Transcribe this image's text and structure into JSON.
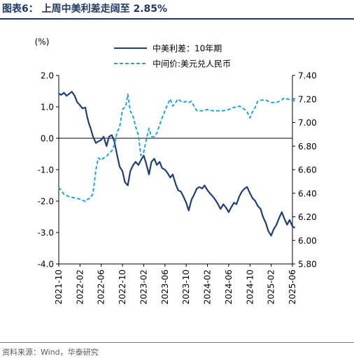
{
  "figure": {
    "title": "图表6：  上周中美利差走阔至 2.85%",
    "source": "资料来源：Wind，华泰研究"
  },
  "colors": {
    "title": "#1f3864",
    "spread_line": "#1f3f7a",
    "fx_line": "#1fa5e0"
  },
  "chart_data": {
    "type": "line",
    "left_axis": {
      "unit_label": "(%)",
      "range": [
        -4.0,
        2.0
      ],
      "ticks": [
        2.0,
        1.0,
        0.0,
        -1.0,
        -2.0,
        -3.0,
        -4.0
      ],
      "tick_labels": [
        "2.0",
        "1.0",
        "0.0",
        "-1.0",
        "-2.0",
        "-3.0",
        "-4.0"
      ]
    },
    "right_axis": {
      "range": [
        5.8,
        7.4
      ],
      "ticks": [
        7.4,
        7.2,
        7.0,
        6.8,
        6.6,
        6.4,
        6.2,
        6.0,
        5.8
      ],
      "tick_labels": [
        "7.40",
        "7.20",
        "7.00",
        "6.80",
        "6.60",
        "6.40",
        "6.20",
        "6.00",
        "5.80"
      ]
    },
    "x_axis": {
      "range": [
        "2021-10",
        "2025-06"
      ],
      "tick_labels": [
        "2021-10",
        "2022-02",
        "2022-06",
        "2022-10",
        "2023-02",
        "2023-06",
        "2023-10",
        "2024-02",
        "2024-06",
        "2024-10",
        "2025-02",
        "2025-06"
      ]
    },
    "legend": {
      "placement": "top",
      "entries": [
        "中美利差：10年期",
        "中间价:美元兑人民币"
      ]
    },
    "series": [
      {
        "name": "中美利差：10年期",
        "axis": "left",
        "style": "solid",
        "points": [
          [
            "2021-10-01",
            1.42
          ],
          [
            "2021-10-15",
            1.38
          ],
          [
            "2021-11-01",
            1.45
          ],
          [
            "2021-11-15",
            1.35
          ],
          [
            "2021-12-01",
            1.42
          ],
          [
            "2021-12-15",
            1.48
          ],
          [
            "2022-01-01",
            1.35
          ],
          [
            "2022-01-15",
            1.15
          ],
          [
            "2022-02-01",
            1.05
          ],
          [
            "2022-02-15",
            0.95
          ],
          [
            "2022-03-01",
            0.98
          ],
          [
            "2022-03-10",
            0.72
          ],
          [
            "2022-03-20",
            0.5
          ],
          [
            "2022-04-01",
            0.32
          ],
          [
            "2022-04-15",
            0.05
          ],
          [
            "2022-05-01",
            -0.15
          ],
          [
            "2022-05-15",
            -0.1
          ],
          [
            "2022-06-01",
            -0.05
          ],
          [
            "2022-06-15",
            0.05
          ],
          [
            "2022-07-01",
            -0.25
          ],
          [
            "2022-07-15",
            0.05
          ],
          [
            "2022-08-01",
            0.1
          ],
          [
            "2022-08-15",
            -0.1
          ],
          [
            "2022-09-01",
            -0.55
          ],
          [
            "2022-09-15",
            -0.9
          ],
          [
            "2022-10-01",
            -1.05
          ],
          [
            "2022-10-15",
            -1.4
          ],
          [
            "2022-11-01",
            -1.5
          ],
          [
            "2022-11-15",
            -1.05
          ],
          [
            "2022-12-01",
            -0.85
          ],
          [
            "2022-12-15",
            -0.75
          ],
          [
            "2023-01-01",
            -0.85
          ],
          [
            "2023-01-15",
            -0.7
          ],
          [
            "2023-02-01",
            -0.55
          ],
          [
            "2023-02-15",
            -0.8
          ],
          [
            "2023-03-01",
            -1.15
          ],
          [
            "2023-03-15",
            -0.75
          ],
          [
            "2023-04-01",
            -0.65
          ],
          [
            "2023-04-15",
            -0.85
          ],
          [
            "2023-05-01",
            -0.75
          ],
          [
            "2023-05-15",
            -0.95
          ],
          [
            "2023-06-01",
            -1.0
          ],
          [
            "2023-06-15",
            -1.1
          ],
          [
            "2023-07-01",
            -1.25
          ],
          [
            "2023-07-15",
            -1.15
          ],
          [
            "2023-08-01",
            -1.45
          ],
          [
            "2023-08-15",
            -1.65
          ],
          [
            "2023-09-01",
            -1.7
          ],
          [
            "2023-09-15",
            -1.85
          ],
          [
            "2023-10-01",
            -2.05
          ],
          [
            "2023-10-15",
            -2.3
          ],
          [
            "2023-11-01",
            -1.95
          ],
          [
            "2023-11-15",
            -1.8
          ],
          [
            "2023-12-01",
            -1.6
          ],
          [
            "2023-12-15",
            -1.55
          ],
          [
            "2024-01-01",
            -1.6
          ],
          [
            "2024-01-15",
            -1.5
          ],
          [
            "2024-02-01",
            -1.65
          ],
          [
            "2024-02-15",
            -1.75
          ],
          [
            "2024-03-01",
            -1.85
          ],
          [
            "2024-03-15",
            -1.95
          ],
          [
            "2024-04-01",
            -2.1
          ],
          [
            "2024-04-15",
            -2.25
          ],
          [
            "2024-05-01",
            -2.1
          ],
          [
            "2024-05-15",
            -2.2
          ],
          [
            "2024-06-01",
            -2.35
          ],
          [
            "2024-06-15",
            -2.2
          ],
          [
            "2024-07-01",
            -2.05
          ],
          [
            "2024-07-15",
            -2.1
          ],
          [
            "2024-08-01",
            -1.85
          ],
          [
            "2024-08-15",
            -1.7
          ],
          [
            "2024-09-01",
            -1.6
          ],
          [
            "2024-09-15",
            -1.55
          ],
          [
            "2024-10-01",
            -1.75
          ],
          [
            "2024-10-15",
            -1.9
          ],
          [
            "2024-11-01",
            -2.0
          ],
          [
            "2024-11-15",
            -2.15
          ],
          [
            "2024-12-01",
            -2.25
          ],
          [
            "2024-12-15",
            -2.5
          ],
          [
            "2025-01-01",
            -2.7
          ],
          [
            "2025-01-15",
            -2.95
          ],
          [
            "2025-02-01",
            -3.1
          ],
          [
            "2025-02-15",
            -2.9
          ],
          [
            "2025-03-01",
            -2.75
          ],
          [
            "2025-03-15",
            -2.55
          ],
          [
            "2025-04-01",
            -2.35
          ],
          [
            "2025-04-15",
            -2.55
          ],
          [
            "2025-05-01",
            -2.75
          ],
          [
            "2025-05-15",
            -2.6
          ],
          [
            "2025-06-01",
            -2.8
          ],
          [
            "2025-06-15",
            -2.85
          ]
        ]
      },
      {
        "name": "中间价:美元兑人民币",
        "axis": "right",
        "style": "dashed",
        "points": [
          [
            "2021-10-01",
            6.45
          ],
          [
            "2021-11-01",
            6.39
          ],
          [
            "2021-12-01",
            6.37
          ],
          [
            "2022-01-01",
            6.36
          ],
          [
            "2022-02-01",
            6.35
          ],
          [
            "2022-03-01",
            6.33
          ],
          [
            "2022-03-15",
            6.35
          ],
          [
            "2022-04-01",
            6.36
          ],
          [
            "2022-04-15",
            6.4
          ],
          [
            "2022-05-01",
            6.6
          ],
          [
            "2022-05-15",
            6.7
          ],
          [
            "2022-06-01",
            6.68
          ],
          [
            "2022-06-15",
            6.7
          ],
          [
            "2022-07-01",
            6.71
          ],
          [
            "2022-07-15",
            6.74
          ],
          [
            "2022-08-01",
            6.76
          ],
          [
            "2022-08-15",
            6.81
          ],
          [
            "2022-09-01",
            6.92
          ],
          [
            "2022-09-15",
            6.96
          ],
          [
            "2022-10-01",
            7.11
          ],
          [
            "2022-10-20",
            7.14
          ],
          [
            "2022-11-01",
            7.24
          ],
          [
            "2022-11-15",
            7.1
          ],
          [
            "2022-12-01",
            7.05
          ],
          [
            "2022-12-15",
            6.97
          ],
          [
            "2023-01-01",
            6.89
          ],
          [
            "2023-01-15",
            6.72
          ],
          [
            "2023-02-01",
            6.75
          ],
          [
            "2023-02-15",
            6.85
          ],
          [
            "2023-03-01",
            6.95
          ],
          [
            "2023-03-15",
            6.88
          ],
          [
            "2023-04-01",
            6.88
          ],
          [
            "2023-04-15",
            6.91
          ],
          [
            "2023-05-01",
            6.98
          ],
          [
            "2023-05-15",
            7.04
          ],
          [
            "2023-06-01",
            7.1
          ],
          [
            "2023-06-15",
            7.15
          ],
          [
            "2023-07-01",
            7.2
          ],
          [
            "2023-07-15",
            7.14
          ],
          [
            "2023-08-01",
            7.17
          ],
          [
            "2023-08-15",
            7.2
          ],
          [
            "2023-09-01",
            7.18
          ],
          [
            "2023-09-15",
            7.17
          ],
          [
            "2023-10-01",
            7.18
          ],
          [
            "2023-10-15",
            7.17
          ],
          [
            "2023-11-01",
            7.18
          ],
          [
            "2023-11-15",
            7.14
          ],
          [
            "2023-12-01",
            7.1
          ],
          [
            "2023-12-15",
            7.1
          ],
          [
            "2024-01-01",
            7.1
          ],
          [
            "2024-02-01",
            7.11
          ],
          [
            "2024-03-01",
            7.1
          ],
          [
            "2024-04-01",
            7.1
          ],
          [
            "2024-05-01",
            7.1
          ],
          [
            "2024-06-01",
            7.11
          ],
          [
            "2024-07-01",
            7.13
          ],
          [
            "2024-07-15",
            7.13
          ],
          [
            "2024-08-01",
            7.14
          ],
          [
            "2024-08-15",
            7.13
          ],
          [
            "2024-09-01",
            7.11
          ],
          [
            "2024-09-15",
            7.09
          ],
          [
            "2024-10-01",
            7.04
          ],
          [
            "2024-10-15",
            7.09
          ],
          [
            "2024-11-01",
            7.13
          ],
          [
            "2024-11-15",
            7.18
          ],
          [
            "2024-12-01",
            7.19
          ],
          [
            "2024-12-15",
            7.19
          ],
          [
            "2025-01-01",
            7.19
          ],
          [
            "2025-02-01",
            7.17
          ],
          [
            "2025-03-01",
            7.17
          ],
          [
            "2025-04-01",
            7.19
          ],
          [
            "2025-04-15",
            7.21
          ],
          [
            "2025-05-01",
            7.2
          ],
          [
            "2025-06-01",
            7.19
          ],
          [
            "2025-06-15",
            7.18
          ]
        ]
      }
    ]
  }
}
